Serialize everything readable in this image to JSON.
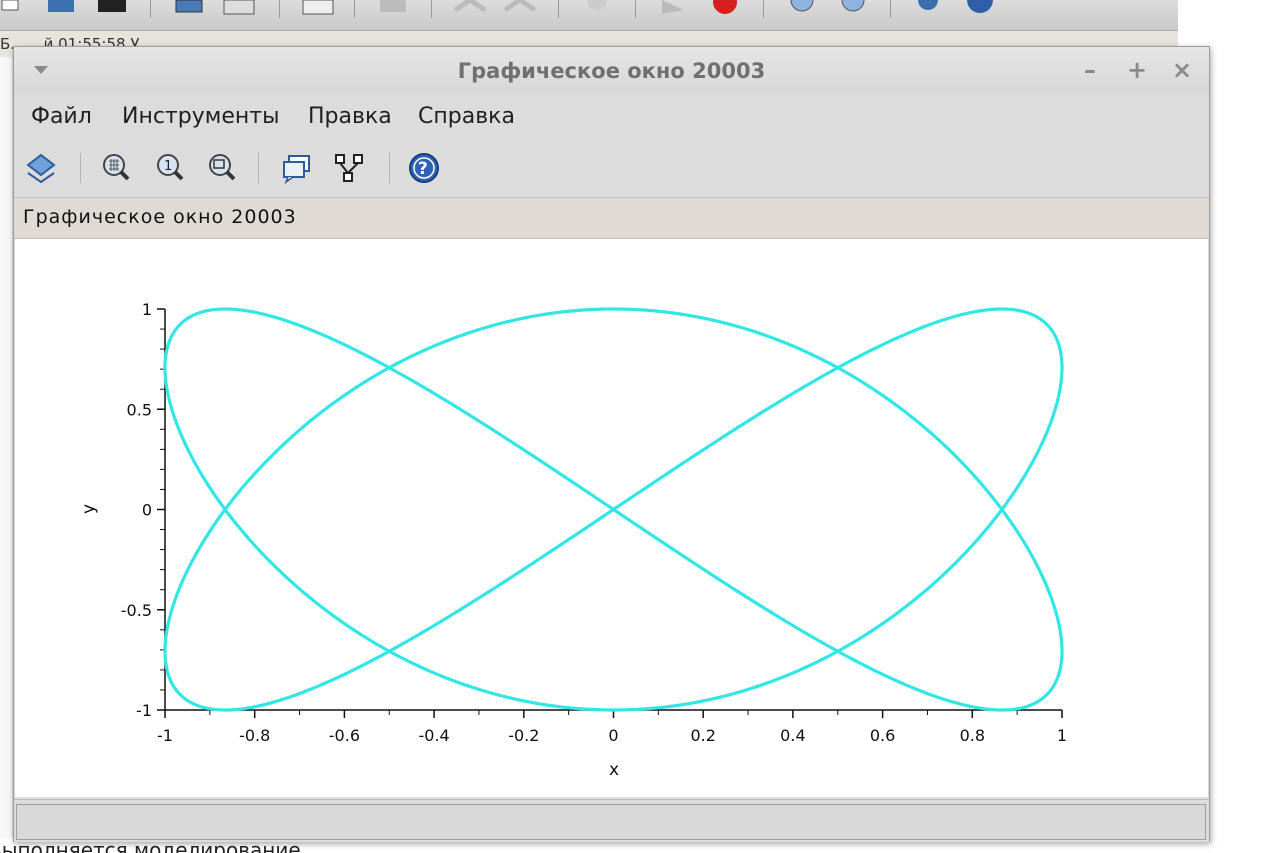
{
  "background_window": {
    "status_line": "Выполняется моделирование",
    "top_line_fragment": "Б... ...й   01:55:58   У"
  },
  "graphic_window": {
    "title": "Графическое окно 20003",
    "controls": {
      "minimize": "–",
      "maximize": "+",
      "close": "×"
    },
    "menu": [
      {
        "label": "Файл"
      },
      {
        "label": "Инструменты"
      },
      {
        "label": "Правка"
      },
      {
        "label": "Справка"
      }
    ],
    "toolbar_icons": [
      "rotate-icon",
      "zoom-grid-icon",
      "zoom-original-icon",
      "zoom-area-icon",
      "datatips-icon",
      "datatip-editor-icon",
      "help-icon"
    ],
    "figure_label": "Графическое окно 20003",
    "status_text": ""
  },
  "chart_data": {
    "type": "line",
    "title": "",
    "xlabel": "x",
    "ylabel": "y",
    "xlim": [
      -1,
      1
    ],
    "ylim": [
      -1,
      1
    ],
    "x_ticks": [
      "-1",
      "-0.8",
      "-0.6",
      "-0.4",
      "-0.2",
      "0",
      "0.2",
      "0.4",
      "0.6",
      "0.8",
      "1"
    ],
    "y_ticks": [
      "-1",
      "-0.5",
      "0",
      "0.5",
      "1"
    ],
    "grid": false,
    "legend": "none",
    "color": "#33e6e6",
    "series": [
      {
        "x_function": "sin(t)",
        "y_function": "cos(1.5*t)",
        "t_range": [
          0,
          12.566
        ],
        "description_x_values_sample": []
      }
    ],
    "parametric": {
      "x": "sin(t)",
      "y": "cos(1.5*t)"
    }
  }
}
